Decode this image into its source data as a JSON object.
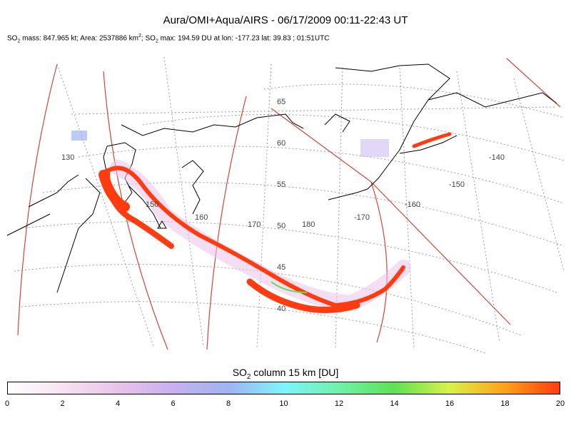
{
  "title": "Aura/OMI+Aqua/AIRS - 06/17/2009 00:11-22:43 UT",
  "stats": {
    "mass_prefix": "SO",
    "mass_sub": "2",
    "mass_text": " mass: 847.965 kt; Area: 2537886 km",
    "area_sup": "2",
    "max_prefix": "; SO",
    "max_sub": "2",
    "max_text": " max: 194.59 DU at lon: -177.23 lat: 39.83 ; 01:51UTC"
  },
  "map": {
    "lat_labels": [
      "65",
      "60",
      "55",
      "50",
      "45",
      "40"
    ],
    "lon_labels": [
      "130",
      "150",
      "160",
      "170",
      "180",
      "-170",
      "-160",
      "-150",
      "-140"
    ],
    "plume_color": "#ff3b10"
  },
  "colorbar": {
    "title_prefix": "SO",
    "title_sub": "2",
    "title_text": " column 15 km [DU]",
    "ticks": [
      "0",
      "2",
      "4",
      "6",
      "8",
      "10",
      "12",
      "14",
      "16",
      "18",
      "20"
    ],
    "range": [
      0,
      20
    ]
  }
}
